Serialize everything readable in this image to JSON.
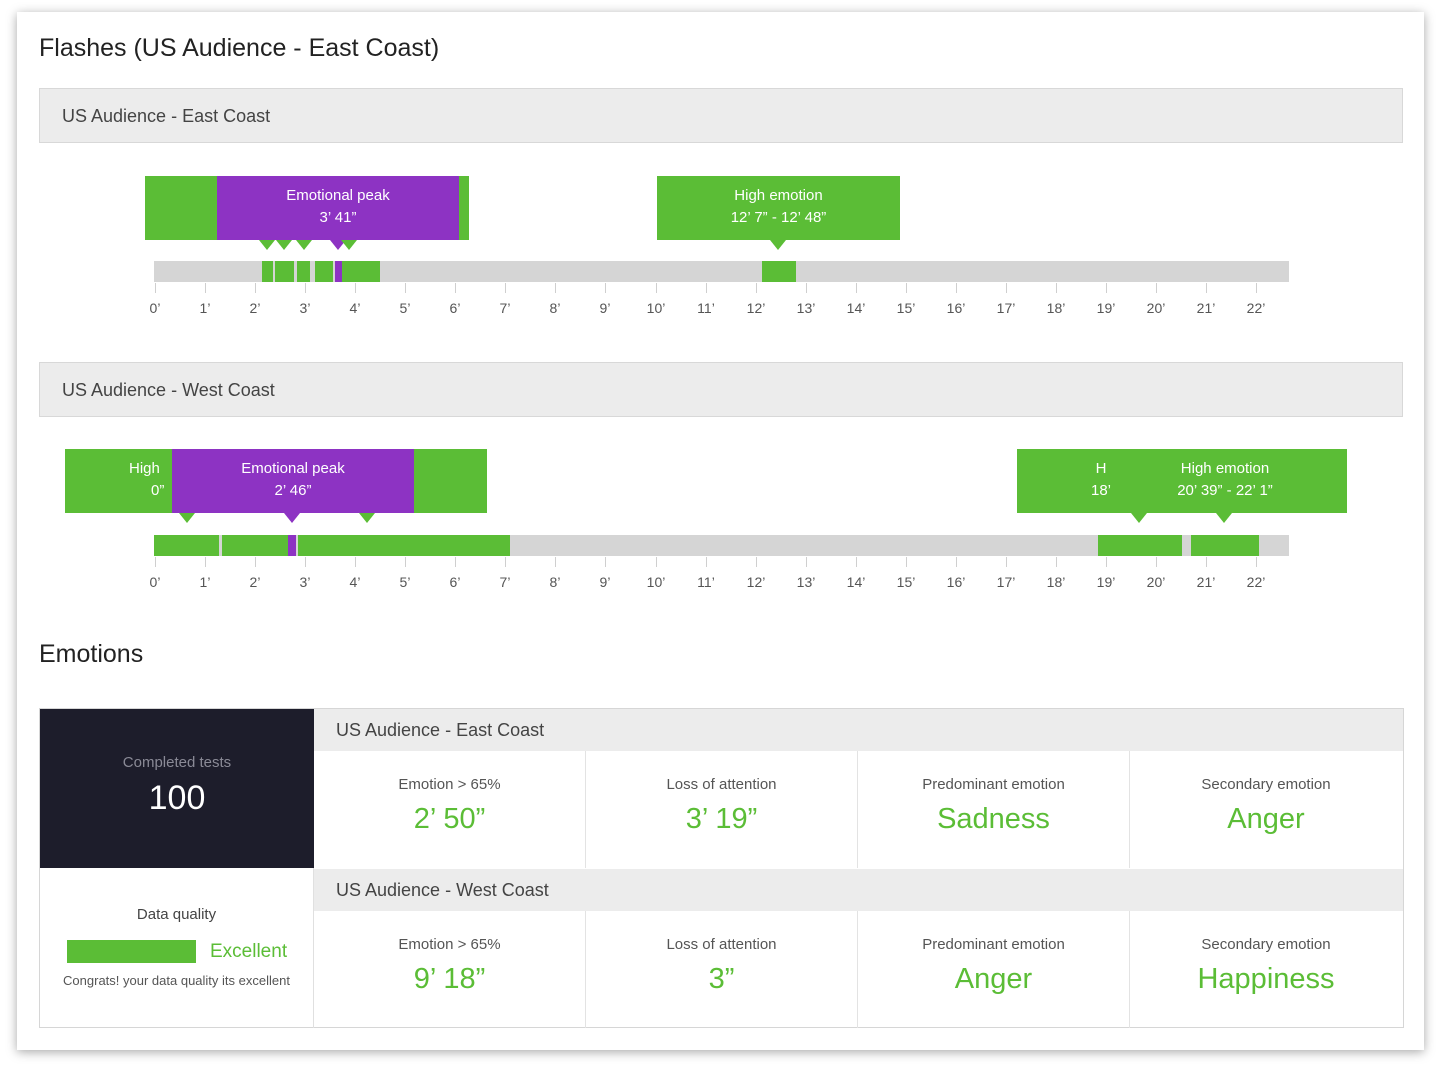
{
  "page_title": "Flashes (US Audience - East Coast)",
  "timelines": [
    {
      "title": "US Audience - East Coast",
      "ticks": [
        "0’",
        "1’",
        "2’",
        "3’",
        "4’",
        "5’",
        "6’",
        "7’",
        "8’",
        "9’",
        "10’",
        "11’",
        "12’",
        "13’",
        "14’",
        "15’",
        "16’",
        "17’",
        "18’",
        "19’",
        "20’",
        "21’",
        "22’"
      ],
      "flashes": [
        {
          "label": "Emotional peak",
          "time": "3’ 41”"
        },
        {
          "label": "High emotion",
          "time": "12’ 7” - 12’ 48”"
        }
      ]
    },
    {
      "title": "US Audience - West Coast",
      "ticks": [
        "0’",
        "1’",
        "2’",
        "3’",
        "4’",
        "5’",
        "6’",
        "7’",
        "8’",
        "9’",
        "10’",
        "11’",
        "12’",
        "13’",
        "14’",
        "15’",
        "16’",
        "17’",
        "18’",
        "19’",
        "20’",
        "21’",
        "22’"
      ],
      "flashes": [
        {
          "label": "High",
          "time": "0”"
        },
        {
          "label": "Emotional peak",
          "time": "2’ 46”"
        },
        {
          "label": "H",
          "time": "18’"
        },
        {
          "label": "High emotion",
          "time": "20’ 39” - 22’ 1”"
        }
      ]
    }
  ],
  "emotions": {
    "title": "Emotions",
    "completed_label": "Completed tests",
    "completed_value": "100",
    "data_quality_label": "Data quality",
    "data_quality_value": "Excellent",
    "data_quality_note": "Congrats! your data quality its excellent",
    "rows": [
      {
        "title": "US Audience - East Coast",
        "metrics": [
          {
            "label": "Emotion > 65%",
            "value": "2’ 50”"
          },
          {
            "label": "Loss of attention",
            "value": "3’ 19”"
          },
          {
            "label": "Predominant emotion",
            "value": "Sadness"
          },
          {
            "label": "Secondary emotion",
            "value": "Anger"
          }
        ]
      },
      {
        "title": "US Audience - West Coast",
        "metrics": [
          {
            "label": "Emotion > 65%",
            "value": "9’ 18”"
          },
          {
            "label": "Loss of attention",
            "value": "3”"
          },
          {
            "label": "Predominant emotion",
            "value": "Anger"
          },
          {
            "label": "Secondary emotion",
            "value": "Happiness"
          }
        ]
      }
    ]
  },
  "colors": {
    "accent_green": "#5bbd36",
    "peak_purple": "#8d33c3",
    "dark_panel": "#1d1d2b"
  }
}
